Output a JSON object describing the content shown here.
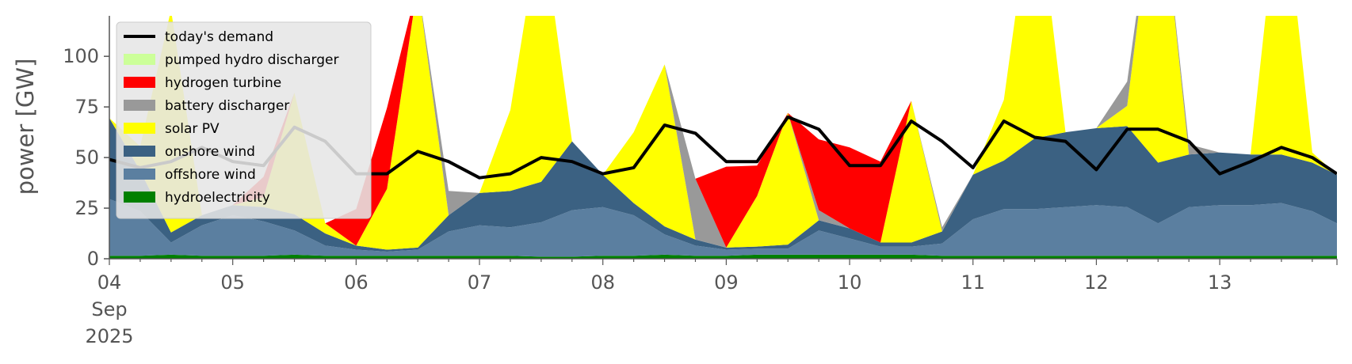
{
  "chart_data": {
    "type": "area",
    "ylabel": "power [GW]",
    "ylim": [
      0,
      120
    ],
    "y_ticks": [
      0,
      25,
      50,
      75,
      100
    ],
    "x_ticks": [
      {
        "day": 0,
        "label": "04",
        "sub1": "Sep",
        "sub2": "2025"
      },
      {
        "day": 1,
        "label": "05"
      },
      {
        "day": 2,
        "label": "06"
      },
      {
        "day": 3,
        "label": "07"
      },
      {
        "day": 4,
        "label": "08"
      },
      {
        "day": 5,
        "label": "09"
      },
      {
        "day": 6,
        "label": "10"
      },
      {
        "day": 7,
        "label": "11"
      },
      {
        "day": 8,
        "label": "12"
      },
      {
        "day": 9,
        "label": "13"
      }
    ],
    "x_range_days": [
      0,
      9.95
    ],
    "x": [
      0,
      0.25,
      0.5,
      0.75,
      1,
      1.25,
      1.5,
      1.75,
      2,
      2.25,
      2.5,
      2.75,
      3,
      3.25,
      3.5,
      3.75,
      4,
      4.25,
      4.5,
      4.75,
      5,
      5.25,
      5.5,
      5.75,
      6,
      6.25,
      6.5,
      6.75,
      7,
      7.25,
      7.5,
      7.75,
      8,
      8.25,
      8.5,
      8.75,
      9,
      9.25,
      9.5,
      9.75,
      9.95
    ],
    "legend_position": "upper-left",
    "grid": false,
    "series": [
      {
        "name": "hydroelectricity",
        "color": "#008000",
        "values": [
          1.5,
          1.5,
          2,
          1.5,
          1.5,
          1.5,
          2,
          1.5,
          1.5,
          1.5,
          1.5,
          1.5,
          1.5,
          1.5,
          1,
          1,
          1.5,
          1.5,
          2,
          1.5,
          1.5,
          2,
          2,
          2,
          2,
          2,
          2,
          1.5,
          1.5,
          1.5,
          1.5,
          1.5,
          1.5,
          1.5,
          1.5,
          1.5,
          1.5,
          1.5,
          1.5,
          1.5,
          1.5
        ]
      },
      {
        "name": "offshore wind",
        "color": "#5b7fa0",
        "values": [
          28,
          22,
          6,
          15,
          20,
          17,
          12,
          5,
          3,
          2,
          3,
          12,
          15,
          14,
          17,
          23,
          24,
          20,
          10,
          5,
          3,
          3,
          3,
          12,
          8,
          4,
          4,
          6,
          18,
          23,
          23,
          24,
          25,
          24,
          16,
          24,
          25,
          25,
          26,
          22,
          16
        ]
      },
      {
        "name": "onshore wind",
        "color": "#3b6182",
        "values": [
          40,
          20,
          5,
          5,
          5,
          7,
          8,
          6,
          2,
          1,
          1,
          8,
          16,
          18,
          20,
          34,
          16,
          6,
          4,
          3,
          1,
          1,
          2,
          5,
          5,
          2,
          2,
          6,
          22,
          24,
          35,
          37,
          38,
          40,
          30,
          26,
          26,
          25,
          24,
          24,
          24
        ]
      },
      {
        "name": "solar PV",
        "color": "#ffff00",
        "values": [
          0,
          12,
          110,
          0,
          0,
          5,
          60,
          5,
          0,
          30,
          130,
          0,
          0,
          40,
          130,
          0,
          0,
          35,
          80,
          0,
          0,
          25,
          65,
          0,
          0,
          0,
          70,
          0,
          0,
          30,
          130,
          0,
          0,
          10,
          150,
          0,
          0,
          0,
          140,
          5,
          0
        ]
      },
      {
        "name": "battery discharger",
        "color": "#999999",
        "values": [
          0,
          0,
          0,
          0,
          0,
          0,
          0,
          0,
          0,
          0,
          0,
          12,
          0,
          0,
          0,
          0,
          0,
          0,
          0,
          30,
          0,
          0,
          0,
          5,
          0,
          0,
          0,
          2,
          0,
          0,
          0,
          0,
          0,
          12,
          0,
          5,
          0,
          0,
          0,
          0,
          0
        ]
      },
      {
        "name": "hydrogen turbine",
        "color": "#ff0000",
        "values": [
          0,
          0,
          0,
          0,
          0,
          10,
          0,
          0,
          18,
          40,
          0,
          0,
          0,
          0,
          0,
          0,
          0,
          0,
          0,
          0,
          40,
          15,
          0,
          35,
          40,
          40,
          0,
          0,
          0,
          0,
          0,
          0,
          0,
          0,
          0,
          0,
          0,
          0,
          0,
          0,
          0
        ]
      },
      {
        "name": "pumped hydro discharger",
        "color": "#ccff99",
        "values": [
          0,
          0,
          0,
          0,
          0,
          0,
          0,
          0,
          0,
          0,
          0,
          0,
          0,
          0,
          0,
          0,
          0,
          0,
          0,
          0,
          0,
          0,
          0,
          0,
          0,
          0,
          0,
          0,
          0,
          0,
          0,
          0,
          0,
          0,
          0,
          0,
          0,
          0,
          0,
          0,
          0
        ]
      }
    ],
    "demand": {
      "name": "today's demand",
      "color": "#000000",
      "values": [
        49,
        45,
        48,
        55,
        48,
        46,
        65,
        58,
        42,
        42,
        53,
        48,
        40,
        42,
        50,
        48,
        42,
        45,
        66,
        62,
        48,
        48,
        70,
        64,
        46,
        46,
        68,
        58,
        45,
        68,
        60,
        58,
        44,
        64,
        64,
        58,
        42,
        48,
        55,
        50,
        42
      ]
    },
    "legend": [
      "today's demand",
      "pumped hydro discharger",
      "hydrogen turbine",
      "battery discharger",
      "solar PV",
      "onshore wind",
      "offshore wind",
      "hydroelectricity"
    ]
  }
}
